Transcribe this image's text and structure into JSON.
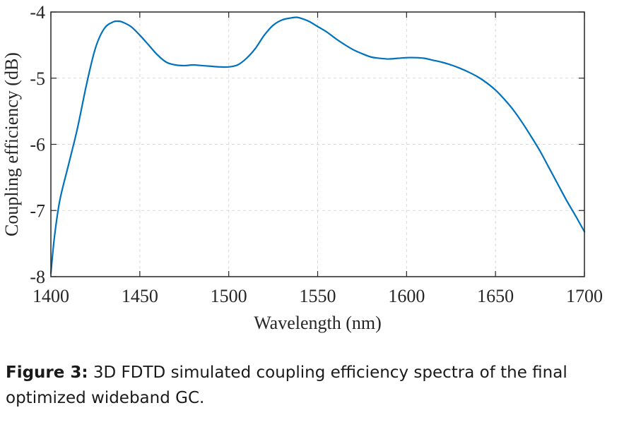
{
  "chart_data": {
    "type": "line",
    "xlabel": "Wavelength (nm)",
    "ylabel": "Coupling efficiency (dB)",
    "xlim": [
      1400,
      1700
    ],
    "ylim": [
      -8,
      -4
    ],
    "xticks": [
      1400,
      1450,
      1500,
      1550,
      1600,
      1650,
      1700
    ],
    "yticks": [
      -8,
      -7,
      -6,
      -5,
      -4
    ],
    "xtick_labels": [
      "1400",
      "1450",
      "1500",
      "1550",
      "1600",
      "1650",
      "1700"
    ],
    "ytick_labels": [
      "-8",
      "-7",
      "-6",
      "-5",
      "-4"
    ],
    "grid": true,
    "line_color": "#0072BD",
    "series": [
      {
        "x": [
          1400,
          1402,
          1405,
          1410,
          1415,
          1420,
          1425,
          1430,
          1435,
          1438,
          1440,
          1445,
          1450,
          1455,
          1460,
          1465,
          1470,
          1475,
          1480,
          1485,
          1490,
          1495,
          1500,
          1505,
          1510,
          1515,
          1520,
          1525,
          1530,
          1535,
          1538,
          1540,
          1545,
          1550,
          1555,
          1560,
          1565,
          1570,
          1575,
          1580,
          1585,
          1590,
          1595,
          1600,
          1605,
          1610,
          1615,
          1620,
          1625,
          1630,
          1635,
          1640,
          1645,
          1650,
          1655,
          1660,
          1665,
          1670,
          1675,
          1680,
          1685,
          1690,
          1695,
          1700
        ],
        "y": [
          -7.95,
          -7.4,
          -6.85,
          -6.3,
          -5.75,
          -5.1,
          -4.55,
          -4.25,
          -4.15,
          -4.14,
          -4.15,
          -4.22,
          -4.35,
          -4.5,
          -4.65,
          -4.76,
          -4.8,
          -4.81,
          -4.8,
          -4.81,
          -4.82,
          -4.83,
          -4.83,
          -4.8,
          -4.7,
          -4.55,
          -4.35,
          -4.2,
          -4.12,
          -4.09,
          -4.08,
          -4.09,
          -4.14,
          -4.22,
          -4.3,
          -4.4,
          -4.49,
          -4.57,
          -4.63,
          -4.68,
          -4.7,
          -4.71,
          -4.7,
          -4.69,
          -4.69,
          -4.7,
          -4.73,
          -4.76,
          -4.8,
          -4.85,
          -4.91,
          -4.98,
          -5.07,
          -5.18,
          -5.32,
          -5.48,
          -5.67,
          -5.88,
          -6.1,
          -6.35,
          -6.6,
          -6.85,
          -7.08,
          -7.32
        ]
      }
    ]
  },
  "caption": {
    "label": "Figure 3:",
    "text": "3D FDTD simulated coupling efficiency spectra of the final optimized wideband GC."
  }
}
